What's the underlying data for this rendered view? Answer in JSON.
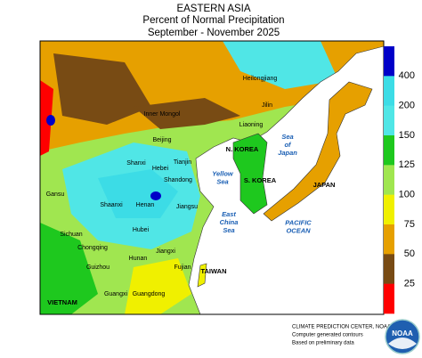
{
  "header": {
    "title": "EASTERN ASIA",
    "subtitle": "Percent of Normal Precipitation",
    "period": "September - November 2025"
  },
  "colorbar": {
    "labels": [
      400,
      200,
      150,
      125,
      100,
      75,
      50,
      25
    ],
    "colors": [
      "#0000c8",
      "#3cdce6",
      "#50e6e6",
      "#1ec81e",
      "#a0e650",
      "#f0f000",
      "#e6a000",
      "#784b14",
      "#ff0000"
    ]
  },
  "map": {
    "labels": [
      {
        "kind": "province",
        "lines": [
          "Heilongjiang"
        ]
      },
      {
        "kind": "province",
        "lines": [
          "Jilin"
        ]
      },
      {
        "kind": "province",
        "lines": [
          "Inner Mongol"
        ]
      },
      {
        "kind": "province",
        "lines": [
          "Liaoning"
        ]
      },
      {
        "kind": "province",
        "lines": [
          "Beijing"
        ]
      },
      {
        "kind": "province",
        "lines": [
          "Tianjin"
        ]
      },
      {
        "kind": "province",
        "lines": [
          "Shanxi"
        ]
      },
      {
        "kind": "province",
        "lines": [
          "Hebei"
        ]
      },
      {
        "kind": "province",
        "lines": [
          "Shandong"
        ]
      },
      {
        "kind": "province",
        "lines": [
          "Gansu"
        ]
      },
      {
        "kind": "province",
        "lines": [
          "Shaanxi"
        ]
      },
      {
        "kind": "province",
        "lines": [
          "Henan"
        ]
      },
      {
        "kind": "province",
        "lines": [
          "Jiangsu"
        ]
      },
      {
        "kind": "province",
        "lines": [
          "Sichuan"
        ]
      },
      {
        "kind": "province",
        "lines": [
          "Hubei"
        ]
      },
      {
        "kind": "province",
        "lines": [
          "Chongqing"
        ]
      },
      {
        "kind": "province",
        "lines": [
          "Hunan"
        ]
      },
      {
        "kind": "province",
        "lines": [
          "Jiangxi"
        ]
      },
      {
        "kind": "province",
        "lines": [
          "Guizhou"
        ]
      },
      {
        "kind": "province",
        "lines": [
          "Fujian"
        ]
      },
      {
        "kind": "province",
        "lines": [
          "Guangxi"
        ]
      },
      {
        "kind": "province",
        "lines": [
          "Guangdong"
        ]
      },
      {
        "kind": "country",
        "lines": [
          "N. KOREA"
        ]
      },
      {
        "kind": "country",
        "lines": [
          "S. KOREA"
        ]
      },
      {
        "kind": "country",
        "lines": [
          "JAPAN"
        ]
      },
      {
        "kind": "country",
        "lines": [
          "TAIWAN"
        ]
      },
      {
        "kind": "country",
        "lines": [
          "VIETNAM"
        ]
      },
      {
        "kind": "sea",
        "lines": [
          "Sea",
          "of",
          "Japan"
        ]
      },
      {
        "kind": "sea",
        "lines": [
          "Yellow",
          "Sea"
        ]
      },
      {
        "kind": "sea",
        "lines": [
          "East",
          "China",
          "Sea"
        ]
      },
      {
        "kind": "sea",
        "lines": [
          "PACIFIC",
          "OCEAN"
        ]
      }
    ]
  },
  "footer": {
    "lines": [
      "CLIMATE PREDICTION CENTER, NOAA",
      "Computer generated contours",
      "Based on preliminary data"
    ],
    "logo": "NOAA"
  }
}
